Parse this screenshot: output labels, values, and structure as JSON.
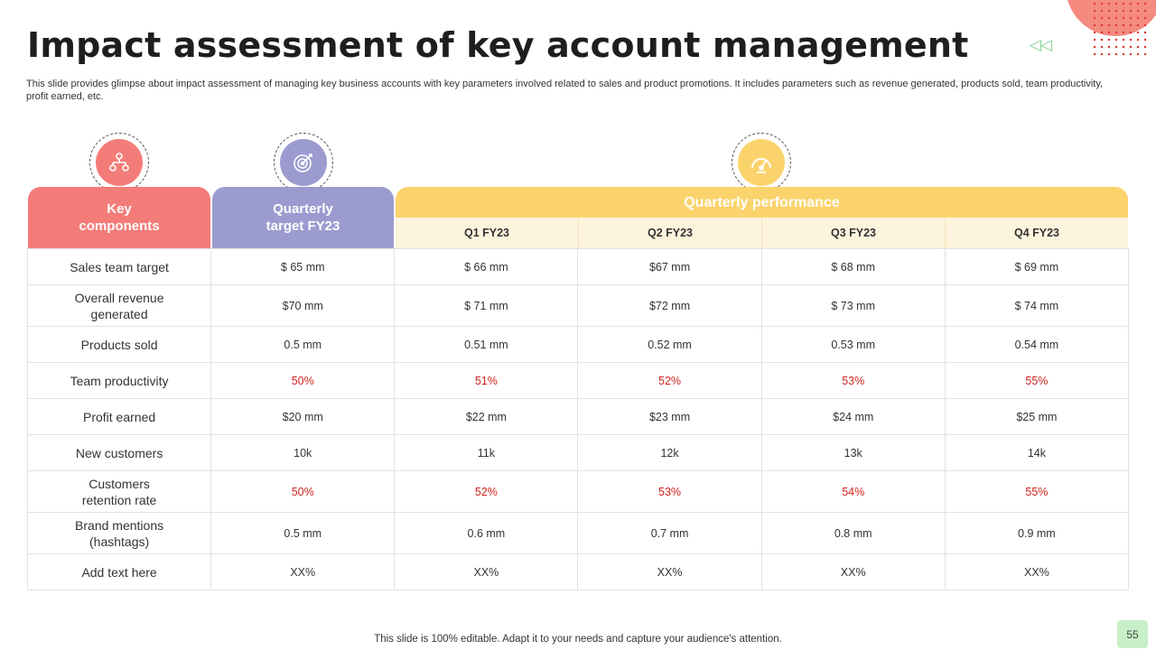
{
  "title": "Impact assessment of key account management",
  "description": "This slide provides glimpse about impact assessment of managing key business accounts with key parameters involved related to sales and product promotions. It includes parameters such as revenue generated, products sold, team productivity, profit earned, etc.",
  "colors": {
    "key": "#f47c78",
    "target": "#9c9bd0",
    "performance": "#fbd36c",
    "highlight": "#d0221d",
    "accent_corner": "#f58a80"
  },
  "header": {
    "key_components": "Key components",
    "quarterly_target": "Quarterly target FY23",
    "quarterly_performance": "Quarterly performance",
    "quarters": [
      "Q1 FY23",
      "Q2 FY23",
      "Q3 FY23",
      "Q4 FY23"
    ]
  },
  "icons": {
    "key": "org-chart-icon",
    "target": "target-icon",
    "performance": "speedometer-icon"
  },
  "rows": [
    {
      "label": "Sales team target",
      "target": "$ 65 mm",
      "q": [
        "$ 66 mm",
        "$67 mm",
        "$ 68 mm",
        "$ 69 mm"
      ],
      "highlight": false
    },
    {
      "label": "Overall revenue generated",
      "target": "$70 mm",
      "q": [
        "$ 71 mm",
        "$72 mm",
        "$ 73 mm",
        "$ 74 mm"
      ],
      "highlight": false
    },
    {
      "label": "Products sold",
      "target": "0.5 mm",
      "q": [
        "0.51 mm",
        "0.52 mm",
        "0.53 mm",
        "0.54 mm"
      ],
      "highlight": false
    },
    {
      "label": "Team productivity",
      "target": "50%",
      "q": [
        "51%",
        "52%",
        "53%",
        "55%"
      ],
      "highlight": true
    },
    {
      "label": "Profit earned",
      "target": "$20 mm",
      "q": [
        "$22 mm",
        "$23 mm",
        "$24 mm",
        "$25 mm"
      ],
      "highlight": false
    },
    {
      "label": "New customers",
      "target": "10k",
      "q": [
        "11k",
        "12k",
        "13k",
        "14k"
      ],
      "highlight": false
    },
    {
      "label": "Customers retention rate",
      "target": "50%",
      "q": [
        "52%",
        "53%",
        "54%",
        "55%"
      ],
      "highlight": true
    },
    {
      "label": "Brand mentions (hashtags)",
      "target": "0.5 mm",
      "q": [
        "0.6 mm",
        "0.7 mm",
        "0.8 mm",
        "0.9 mm"
      ],
      "highlight": false
    },
    {
      "label": "Add text here",
      "target": "XX%",
      "q": [
        "XX%",
        "XX%",
        "XX%",
        "XX%"
      ],
      "highlight": false
    }
  ],
  "footer": "This slide is 100% editable. Adapt it to your needs and capture your audience's attention.",
  "page_number": "55"
}
